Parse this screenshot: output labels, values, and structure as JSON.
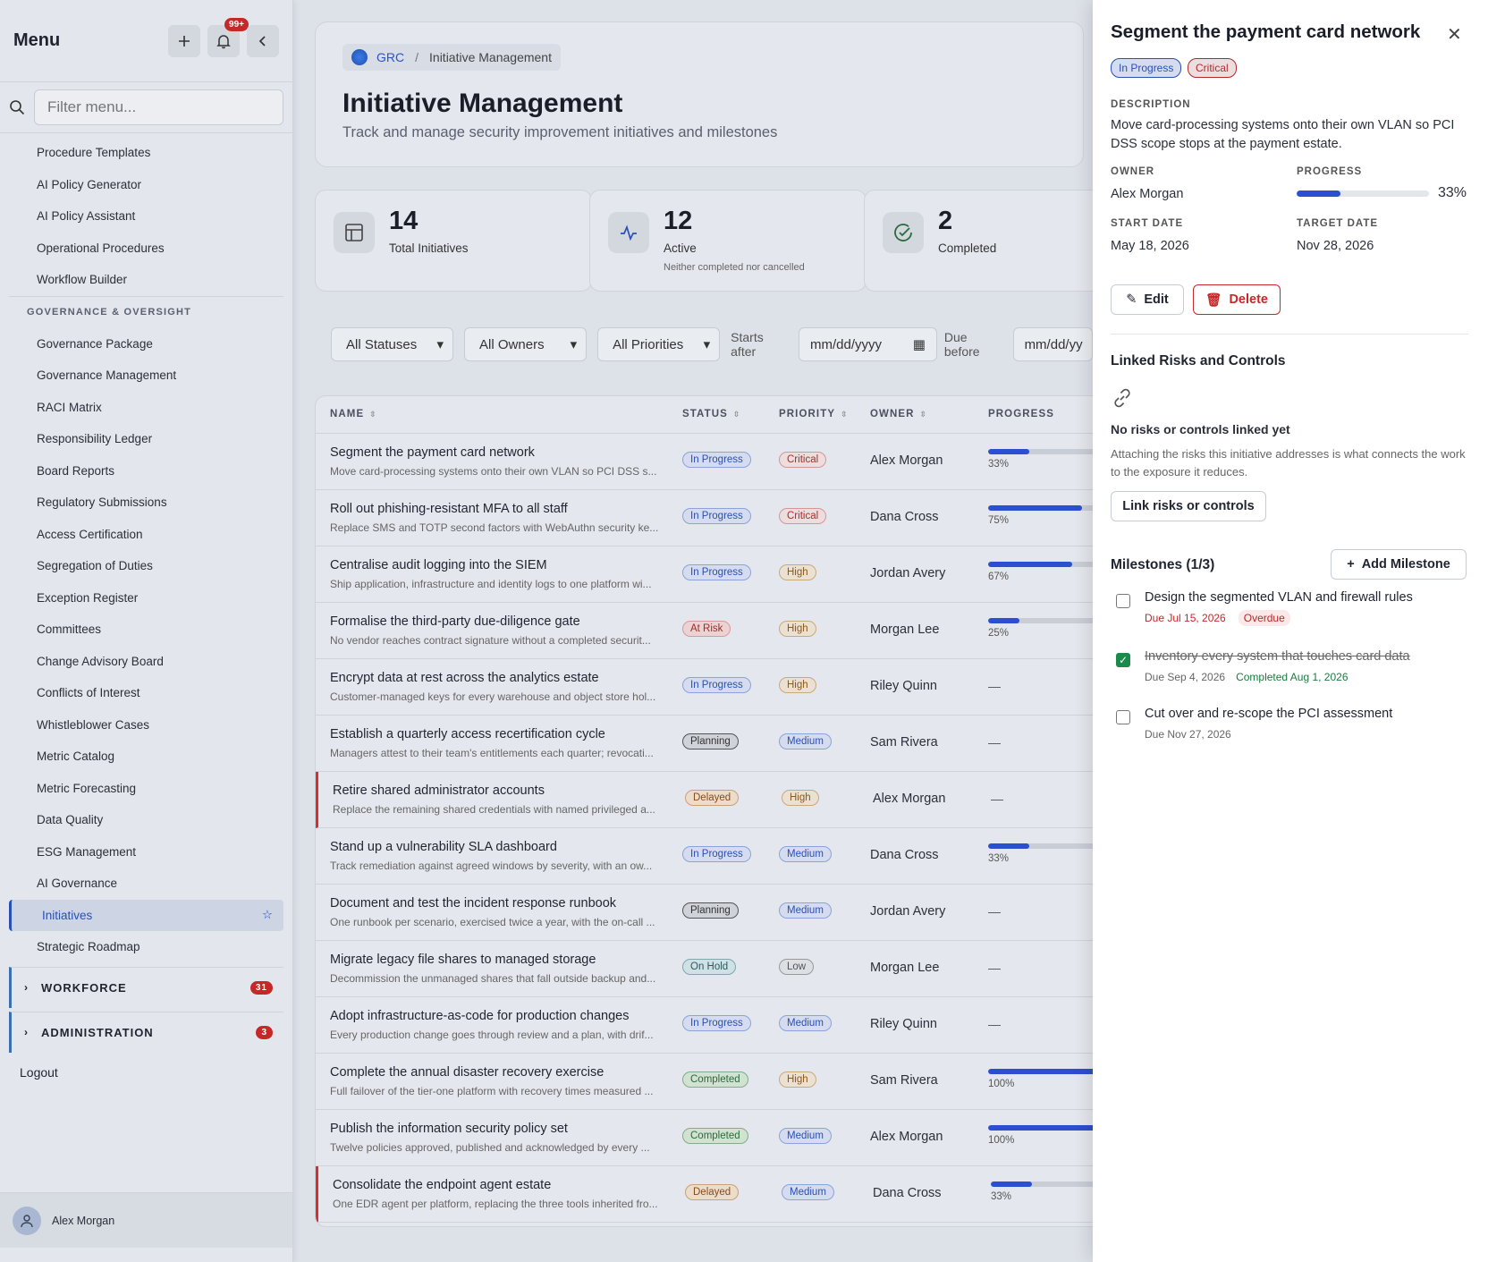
{
  "sidebar": {
    "title": "Menu",
    "notif_count": "99+",
    "filter_placeholder": "Filter menu...",
    "items_top": [
      "Procedure Templates",
      "AI Policy Generator",
      "AI Policy Assistant",
      "Operational Procedures",
      "Workflow Builder"
    ],
    "section": "GOVERNANCE & OVERSIGHT",
    "items": [
      "Governance Package",
      "Governance Management",
      "RACI Matrix",
      "Responsibility Ledger",
      "Board Reports",
      "Regulatory Submissions",
      "Access Certification",
      "Segregation of Duties",
      "Exception Register",
      "Committees",
      "Change Advisory Board",
      "Conflicts of Interest",
      "Whistleblower Cases",
      "Metric Catalog",
      "Metric Forecasting",
      "Data Quality",
      "ESG Management",
      "AI Governance"
    ],
    "active_item": "Initiatives",
    "after_active": "Strategic Roadmap",
    "groups": [
      {
        "label": "WORKFORCE",
        "count": "31"
      },
      {
        "label": "ADMINISTRATION",
        "count": "3"
      }
    ],
    "logout": "Logout",
    "user": "Alex Morgan"
  },
  "header": {
    "crumb_root": "GRC",
    "crumb_page": "Initiative Management",
    "title": "Initiative Management",
    "subtitle": "Track and manage security improvement initiatives and milestones"
  },
  "stats": [
    {
      "value": "14",
      "label": "Total Initiatives",
      "sub": ""
    },
    {
      "value": "12",
      "label": "Active",
      "sub": "Neither completed nor cancelled"
    },
    {
      "value": "2",
      "label": "Completed",
      "sub": ""
    }
  ],
  "filters": {
    "status": "All Statuses",
    "owners": "All Owners",
    "priorities": "All Priorities",
    "starts_after_label": "Starts after",
    "date_placeholder": "mm/dd/yyyy",
    "due_before_label": "Due before",
    "due_placeholder": "mm/dd/yy"
  },
  "table": {
    "columns": [
      "NAME",
      "STATUS",
      "PRIORITY",
      "OWNER",
      "PROGRESS"
    ],
    "rows": [
      {
        "name": "Segment the payment card network",
        "desc": "Move card-processing systems onto their own VLAN so PCI DSS s...",
        "status": "In Progress",
        "priority": "Critical",
        "owner": "Alex Morgan",
        "progress": 33,
        "flag": false
      },
      {
        "name": "Roll out phishing-resistant MFA to all staff",
        "desc": "Replace SMS and TOTP second factors with WebAuthn security ke...",
        "status": "In Progress",
        "priority": "Critical",
        "owner": "Dana Cross",
        "progress": 75,
        "flag": false
      },
      {
        "name": "Centralise audit logging into the SIEM",
        "desc": "Ship application, infrastructure and identity logs to one platform wi...",
        "status": "In Progress",
        "priority": "High",
        "owner": "Jordan Avery",
        "progress": 67,
        "flag": false
      },
      {
        "name": "Formalise the third-party due-diligence gate",
        "desc": "No vendor reaches contract signature without a completed securit...",
        "status": "At Risk",
        "priority": "High",
        "owner": "Morgan Lee",
        "progress": 25,
        "flag": false
      },
      {
        "name": "Encrypt data at rest across the analytics estate",
        "desc": "Customer-managed keys for every warehouse and object store hol...",
        "status": "In Progress",
        "priority": "High",
        "owner": "Riley Quinn",
        "progress": null,
        "flag": false
      },
      {
        "name": "Establish a quarterly access recertification cycle",
        "desc": "Managers attest to their team's entitlements each quarter; revocati...",
        "status": "Planning",
        "priority": "Medium",
        "owner": "Sam Rivera",
        "progress": null,
        "flag": false
      },
      {
        "name": "Retire shared administrator accounts",
        "desc": "Replace the remaining shared credentials with named privileged a...",
        "status": "Delayed",
        "priority": "High",
        "owner": "Alex Morgan",
        "progress": null,
        "flag": true
      },
      {
        "name": "Stand up a vulnerability SLA dashboard",
        "desc": "Track remediation against agreed windows by severity, with an ow...",
        "status": "In Progress",
        "priority": "Medium",
        "owner": "Dana Cross",
        "progress": 33,
        "flag": false
      },
      {
        "name": "Document and test the incident response runbook",
        "desc": "One runbook per scenario, exercised twice a year, with the on-call ...",
        "status": "Planning",
        "priority": "Medium",
        "owner": "Jordan Avery",
        "progress": null,
        "flag": false
      },
      {
        "name": "Migrate legacy file shares to managed storage",
        "desc": "Decommission the unmanaged shares that fall outside backup and...",
        "status": "On Hold",
        "priority": "Low",
        "owner": "Morgan Lee",
        "progress": null,
        "flag": false
      },
      {
        "name": "Adopt infrastructure-as-code for production changes",
        "desc": "Every production change goes through review and a plan, with drif...",
        "status": "In Progress",
        "priority": "Medium",
        "owner": "Riley Quinn",
        "progress": null,
        "flag": false
      },
      {
        "name": "Complete the annual disaster recovery exercise",
        "desc": "Full failover of the tier-one platform with recovery times measured ...",
        "status": "Completed",
        "priority": "High",
        "owner": "Sam Rivera",
        "progress": 100,
        "flag": false
      },
      {
        "name": "Publish the information security policy set",
        "desc": "Twelve policies approved, published and acknowledged by every ...",
        "status": "Completed",
        "priority": "Medium",
        "owner": "Alex Morgan",
        "progress": 100,
        "flag": false
      },
      {
        "name": "Consolidate the endpoint agent estate",
        "desc": "One EDR agent per platform, replacing the three tools inherited fro...",
        "status": "Delayed",
        "priority": "Medium",
        "owner": "Dana Cross",
        "progress": 33,
        "flag": true
      }
    ]
  },
  "detail": {
    "title": "Segment the payment card network",
    "status": "In Progress",
    "priority": "Critical",
    "description_label": "DESCRIPTION",
    "description": "Move card-processing systems onto their own VLAN so PCI DSS scope stops at the payment estate.",
    "owner_label": "OWNER",
    "owner": "Alex Morgan",
    "progress_label": "PROGRESS",
    "progress": 33,
    "progress_text": "33%",
    "start_label": "START DATE",
    "start": "May 18, 2026",
    "target_label": "TARGET DATE",
    "target": "Nov 28, 2026",
    "edit": "Edit",
    "delete": "Delete",
    "linked_title": "Linked Risks and Controls",
    "linked_empty": "No risks or controls linked yet",
    "linked_help": "Attaching the risks this initiative addresses is what connects the work to the exposure it reduces.",
    "link_button": "Link risks or controls",
    "milestones_title": "Milestones (1/3)",
    "add_milestone": "Add Milestone",
    "milestones": [
      {
        "title": "Design the segmented VLAN and firewall rules",
        "due": "Due Jul 15, 2026",
        "extra": "Overdue",
        "done": false
      },
      {
        "title": "Inventory every system that touches card data",
        "due": "Due Sep 4, 2026",
        "extra": "Completed Aug 1, 2026",
        "done": true
      },
      {
        "title": "Cut over and re-scope the PCI assessment",
        "due": "Due Nov 27, 2026",
        "extra": "",
        "done": false
      }
    ]
  }
}
